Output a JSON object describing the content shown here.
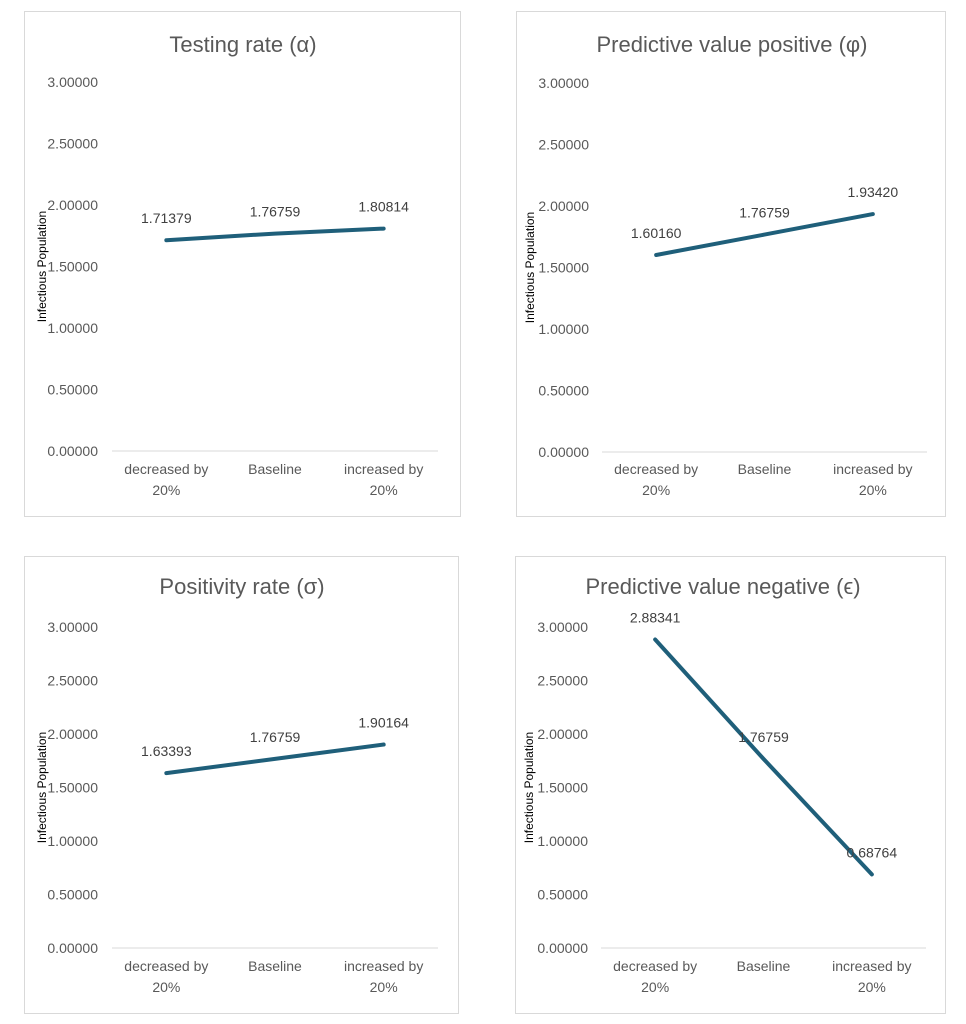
{
  "chart_data": [
    {
      "type": "line",
      "title": "Testing rate (α)",
      "ylabel": "Infectious Population",
      "xlabel": "",
      "categories": [
        [
          "decreased by",
          "20%"
        ],
        [
          "Baseline"
        ],
        [
          "increased by",
          "20%"
        ]
      ],
      "values": [
        1.71379,
        1.76759,
        1.80814
      ],
      "value_labels": [
        "1.71379",
        "1.76759",
        "1.80814"
      ],
      "ylim": [
        0,
        3
      ],
      "yticks": [
        "0.00000",
        "0.50000",
        "1.00000",
        "1.50000",
        "2.00000",
        "2.50000",
        "3.00000"
      ],
      "grid": false,
      "line_color": "#1f5f7a"
    },
    {
      "type": "line",
      "title": "Predictive value positive (φ)",
      "ylabel": "Infectious Population",
      "xlabel": "",
      "categories": [
        [
          "decreased by",
          "20%"
        ],
        [
          "Baseline"
        ],
        [
          "increased by",
          "20%"
        ]
      ],
      "values": [
        1.6016,
        1.76759,
        1.9342
      ],
      "value_labels": [
        "1.60160",
        "1.76759",
        "1.93420"
      ],
      "ylim": [
        0,
        3
      ],
      "yticks": [
        "0.00000",
        "0.50000",
        "1.00000",
        "1.50000",
        "2.00000",
        "2.50000",
        "3.00000"
      ],
      "grid": false,
      "line_color": "#1f5f7a"
    },
    {
      "type": "line",
      "title": "Positivity rate (σ)",
      "ylabel": "Infectious Population",
      "xlabel": "",
      "categories": [
        [
          "decreased by",
          "20%"
        ],
        [
          "Baseline"
        ],
        [
          "increased by",
          "20%"
        ]
      ],
      "values": [
        1.63393,
        1.76759,
        1.90164
      ],
      "value_labels": [
        "1.63393",
        "1.76759",
        "1.90164"
      ],
      "ylim": [
        0,
        3
      ],
      "yticks": [
        "0.00000",
        "0.50000",
        "1.00000",
        "1.50000",
        "2.00000",
        "2.50000",
        "3.00000"
      ],
      "grid": false,
      "line_color": "#1f5f7a"
    },
    {
      "type": "line",
      "title": "Predictive value negative (ϵ)",
      "ylabel": "Infectious Population",
      "xlabel": "",
      "categories": [
        [
          "decreased by",
          "20%"
        ],
        [
          "Baseline"
        ],
        [
          "increased by",
          "20%"
        ]
      ],
      "values": [
        2.88341,
        1.76759,
        0.68764
      ],
      "value_labels": [
        "2.88341",
        "1.76759",
        "0.68764"
      ],
      "ylim": [
        0,
        3
      ],
      "yticks": [
        "0.00000",
        "0.50000",
        "1.00000",
        "1.50000",
        "2.00000",
        "2.50000",
        "3.00000"
      ],
      "grid": false,
      "line_color": "#1f5f7a"
    }
  ]
}
